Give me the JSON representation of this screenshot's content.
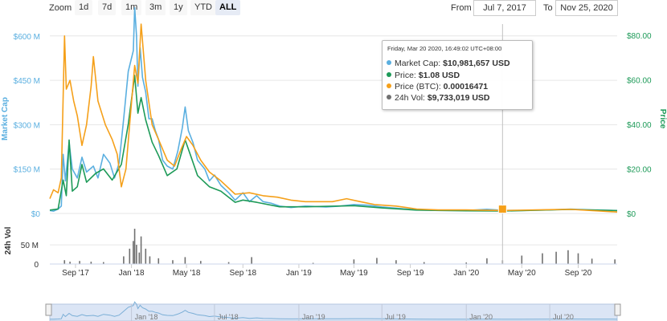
{
  "toolbar": {
    "zoom_label": "Zoom",
    "zoom_buttons": [
      "1d",
      "7d",
      "1m",
      "3m",
      "1y",
      "YTD",
      "ALL"
    ],
    "active_zoom": "ALL",
    "from_label": "From",
    "from_value": "Jul 7, 2017",
    "to_label": "To",
    "to_value": "Nov 25, 2020"
  },
  "tooltip": {
    "header": "Friday, Mar 20 2020, 16:49:02 UTC+08:00",
    "rows": [
      {
        "label": "Market Cap:",
        "value": "$10,981,657 USD",
        "color": "#5aafe0"
      },
      {
        "label": "Price:",
        "value": "$1.08 USD",
        "color": "#1d9a58"
      },
      {
        "label": "Price (BTC):",
        "value": "0.00016471",
        "color": "#f5a01a"
      },
      {
        "label": "24h Vol:",
        "value": "$9,733,019 USD",
        "color": "#707070"
      }
    ]
  },
  "chart_data": [
    {
      "type": "line",
      "x_range": [
        "2017-07-07",
        "2020-11-25"
      ],
      "x_ticks": [
        {
          "date": "2017-09-01",
          "label": "Sep '17"
        },
        {
          "date": "2018-01-01",
          "label": "Jan '18"
        },
        {
          "date": "2018-05-01",
          "label": "May '18"
        },
        {
          "date": "2018-09-01",
          "label": "Sep '18"
        },
        {
          "date": "2019-01-01",
          "label": "Jan '19"
        },
        {
          "date": "2019-05-01",
          "label": "May '19"
        },
        {
          "date": "2019-09-01",
          "label": "Sep '19"
        },
        {
          "date": "2020-01-01",
          "label": "Jan '20"
        },
        {
          "date": "2020-05-01",
          "label": "May '20"
        },
        {
          "date": "2020-09-01",
          "label": "Sep '20"
        }
      ],
      "y_left": {
        "label": "Market Cap",
        "ticks": [
          "$0",
          "$150 M",
          "$300 M",
          "$450 M",
          "$600 M"
        ],
        "tick_values": [
          0,
          150,
          300,
          450,
          600
        ],
        "range": [
          0,
          640
        ],
        "unit": "M USD"
      },
      "y_right": {
        "label": "Price",
        "ticks": [
          "$0",
          "$20.00",
          "$40.00",
          "$60.00",
          "$80.00"
        ],
        "tick_values": [
          0,
          20,
          40,
          60,
          80
        ],
        "range": [
          0,
          85
        ]
      },
      "series": [
        {
          "name": "Market Cap",
          "axis": "left",
          "color": "#5aafe0",
          "points": [
            [
              "2017-07-07",
              10
            ],
            [
              "2017-07-15",
              8
            ],
            [
              "2017-07-25",
              15
            ],
            [
              "2017-08-01",
              25
            ],
            [
              "2017-08-05",
              200
            ],
            [
              "2017-08-10",
              110
            ],
            [
              "2017-08-18",
              240
            ],
            [
              "2017-08-25",
              150
            ],
            [
              "2017-09-05",
              120
            ],
            [
              "2017-09-15",
              190
            ],
            [
              "2017-09-25",
              140
            ],
            [
              "2017-10-10",
              160
            ],
            [
              "2017-10-20",
              120
            ],
            [
              "2017-11-01",
              200
            ],
            [
              "2017-11-15",
              170
            ],
            [
              "2017-11-25",
              120
            ],
            [
              "2017-12-05",
              170
            ],
            [
              "2017-12-15",
              320
            ],
            [
              "2017-12-25",
              480
            ],
            [
              "2018-01-05",
              550
            ],
            [
              "2018-01-08",
              695
            ],
            [
              "2018-01-12",
              600
            ],
            [
              "2018-01-15",
              430
            ],
            [
              "2018-01-20",
              560
            ],
            [
              "2018-01-25",
              460
            ],
            [
              "2018-02-01",
              410
            ],
            [
              "2018-02-08",
              320
            ],
            [
              "2018-02-15",
              320
            ],
            [
              "2018-02-22",
              280
            ],
            [
              "2018-03-01",
              250
            ],
            [
              "2018-03-10",
              180
            ],
            [
              "2018-03-20",
              160
            ],
            [
              "2018-04-01",
              150
            ],
            [
              "2018-04-12",
              210
            ],
            [
              "2018-04-22",
              290
            ],
            [
              "2018-04-28",
              360
            ],
            [
              "2018-05-05",
              280
            ],
            [
              "2018-05-15",
              240
            ],
            [
              "2018-05-25",
              180
            ],
            [
              "2018-06-10",
              150
            ],
            [
              "2018-06-20",
              110
            ],
            [
              "2018-07-01",
              130
            ],
            [
              "2018-07-15",
              95
            ],
            [
              "2018-08-01",
              70
            ],
            [
              "2018-08-15",
              45
            ],
            [
              "2018-09-01",
              70
            ],
            [
              "2018-09-15",
              40
            ],
            [
              "2018-10-01",
              60
            ],
            [
              "2018-10-15",
              40
            ],
            [
              "2018-11-01",
              35
            ],
            [
              "2018-11-20",
              25
            ],
            [
              "2018-12-15",
              20
            ],
            [
              "2019-01-15",
              25
            ],
            [
              "2019-03-01",
              22
            ],
            [
              "2019-04-01",
              25
            ],
            [
              "2019-05-01",
              30
            ],
            [
              "2019-06-01",
              28
            ],
            [
              "2019-07-01",
              22
            ],
            [
              "2019-08-01",
              18
            ],
            [
              "2019-09-15",
              12
            ],
            [
              "2019-11-01",
              10
            ],
            [
              "2020-01-01",
              10
            ],
            [
              "2020-02-15",
              14
            ],
            [
              "2020-03-20",
              10.98
            ],
            [
              "2020-05-01",
              10
            ],
            [
              "2020-07-01",
              12
            ],
            [
              "2020-08-15",
              15
            ],
            [
              "2020-10-01",
              12
            ],
            [
              "2020-11-25",
              10
            ]
          ]
        },
        {
          "name": "Price",
          "axis": "right",
          "color": "#1d9a58",
          "points": [
            [
              "2017-07-07",
              1.5
            ],
            [
              "2017-07-25",
              2
            ],
            [
              "2017-08-05",
              15
            ],
            [
              "2017-08-12",
              8
            ],
            [
              "2017-08-18",
              33
            ],
            [
              "2017-08-25",
              10
            ],
            [
              "2017-09-05",
              12
            ],
            [
              "2017-09-15",
              22
            ],
            [
              "2017-09-25",
              14
            ],
            [
              "2017-10-15",
              18
            ],
            [
              "2017-11-01",
              20
            ],
            [
              "2017-11-20",
              15
            ],
            [
              "2017-12-10",
              22
            ],
            [
              "2017-12-25",
              40
            ],
            [
              "2018-01-08",
              62
            ],
            [
              "2018-01-15",
              45
            ],
            [
              "2018-01-22",
              52
            ],
            [
              "2018-02-01",
              42
            ],
            [
              "2018-02-15",
              32
            ],
            [
              "2018-03-01",
              26
            ],
            [
              "2018-03-20",
              17
            ],
            [
              "2018-04-10",
              20
            ],
            [
              "2018-04-28",
              33
            ],
            [
              "2018-05-10",
              26
            ],
            [
              "2018-05-25",
              17
            ],
            [
              "2018-06-20",
              12
            ],
            [
              "2018-07-15",
              10
            ],
            [
              "2018-08-15",
              5
            ],
            [
              "2018-09-01",
              6
            ],
            [
              "2018-10-01",
              5
            ],
            [
              "2018-11-20",
              3
            ],
            [
              "2019-01-15",
              3
            ],
            [
              "2019-05-01",
              3.5
            ],
            [
              "2019-07-01",
              2.5
            ],
            [
              "2019-09-15",
              1.5
            ],
            [
              "2020-01-01",
              1.2
            ],
            [
              "2020-03-20",
              1.08
            ],
            [
              "2020-08-15",
              1.8
            ],
            [
              "2020-11-25",
              1.3
            ]
          ]
        },
        {
          "name": "Price (BTC)",
          "axis": "left",
          "color": "#f5a01a",
          "points": [
            [
              "2017-07-07",
              50
            ],
            [
              "2017-07-15",
              80
            ],
            [
              "2017-07-25",
              70
            ],
            [
              "2017-08-01",
              120
            ],
            [
              "2017-08-08",
              600
            ],
            [
              "2017-08-12",
              420
            ],
            [
              "2017-08-20",
              450
            ],
            [
              "2017-08-28",
              380
            ],
            [
              "2017-09-05",
              330
            ],
            [
              "2017-09-15",
              230
            ],
            [
              "2017-09-25",
              300
            ],
            [
              "2017-10-05",
              430
            ],
            [
              "2017-10-10",
              530
            ],
            [
              "2017-10-20",
              380
            ],
            [
              "2017-11-05",
              300
            ],
            [
              "2017-11-20",
              250
            ],
            [
              "2017-12-01",
              200
            ],
            [
              "2017-12-10",
              90
            ],
            [
              "2017-12-20",
              150
            ],
            [
              "2017-12-28",
              300
            ],
            [
              "2018-01-08",
              500
            ],
            [
              "2018-01-15",
              440
            ],
            [
              "2018-01-22",
              640
            ],
            [
              "2018-02-01",
              450
            ],
            [
              "2018-02-15",
              300
            ],
            [
              "2018-03-01",
              250
            ],
            [
              "2018-03-20",
              180
            ],
            [
              "2018-04-05",
              160
            ],
            [
              "2018-04-20",
              220
            ],
            [
              "2018-05-01",
              260
            ],
            [
              "2018-05-15",
              230
            ],
            [
              "2018-06-01",
              180
            ],
            [
              "2018-06-20",
              140
            ],
            [
              "2018-07-15",
              110
            ],
            [
              "2018-08-15",
              65
            ],
            [
              "2018-09-15",
              70
            ],
            [
              "2018-10-15",
              60
            ],
            [
              "2018-11-15",
              55
            ],
            [
              "2018-12-15",
              45
            ],
            [
              "2019-01-15",
              40
            ],
            [
              "2019-03-15",
              40
            ],
            [
              "2019-04-15",
              50
            ],
            [
              "2019-05-15",
              40
            ],
            [
              "2019-06-15",
              30
            ],
            [
              "2019-08-01",
              25
            ],
            [
              "2019-09-15",
              15
            ],
            [
              "2019-11-01",
              12
            ],
            [
              "2020-01-01",
              12
            ],
            [
              "2020-03-20",
              10
            ],
            [
              "2020-06-01",
              12
            ],
            [
              "2020-08-15",
              14
            ],
            [
              "2020-11-25",
              5
            ]
          ]
        }
      ]
    },
    {
      "type": "bar",
      "y_label": "24h Vol",
      "y_ticks": [
        "0",
        "50 M"
      ],
      "tick_values": [
        0,
        50
      ],
      "range": [
        0,
        90
      ],
      "unit": "M USD",
      "series": [
        {
          "name": "24h Vol",
          "color": "#707070",
          "points": [
            [
              "2017-08-08",
              10
            ],
            [
              "2017-08-20",
              6
            ],
            [
              "2017-09-10",
              8
            ],
            [
              "2017-10-05",
              6
            ],
            [
              "2017-11-01",
              5
            ],
            [
              "2017-12-15",
              20
            ],
            [
              "2017-12-28",
              40
            ],
            [
              "2018-01-05",
              60
            ],
            [
              "2018-01-08",
              92
            ],
            [
              "2018-01-12",
              50
            ],
            [
              "2018-01-18",
              30
            ],
            [
              "2018-01-22",
              72
            ],
            [
              "2018-02-01",
              40
            ],
            [
              "2018-02-10",
              20
            ],
            [
              "2018-03-01",
              15
            ],
            [
              "2018-04-01",
              10
            ],
            [
              "2018-04-28",
              18
            ],
            [
              "2018-06-01",
              8
            ],
            [
              "2018-08-01",
              5
            ],
            [
              "2018-09-20",
              18
            ],
            [
              "2019-02-01",
              3
            ],
            [
              "2019-05-01",
              12
            ],
            [
              "2019-06-20",
              16
            ],
            [
              "2019-08-01",
              10
            ],
            [
              "2019-10-01",
              5
            ],
            [
              "2020-01-01",
              4
            ],
            [
              "2020-02-15",
              15
            ],
            [
              "2020-03-20",
              9.73
            ],
            [
              "2020-05-01",
              22
            ],
            [
              "2020-06-15",
              28
            ],
            [
              "2020-07-15",
              32
            ],
            [
              "2020-08-10",
              36
            ],
            [
              "2020-09-01",
              28
            ],
            [
              "2020-10-01",
              14
            ],
            [
              "2020-11-20",
              12
            ]
          ]
        }
      ]
    }
  ],
  "navigator": {
    "labels": [
      "Jan '18",
      "Jul '18",
      "Jan '19",
      "Jul '19",
      "Jan '20",
      "Jul '20"
    ]
  }
}
